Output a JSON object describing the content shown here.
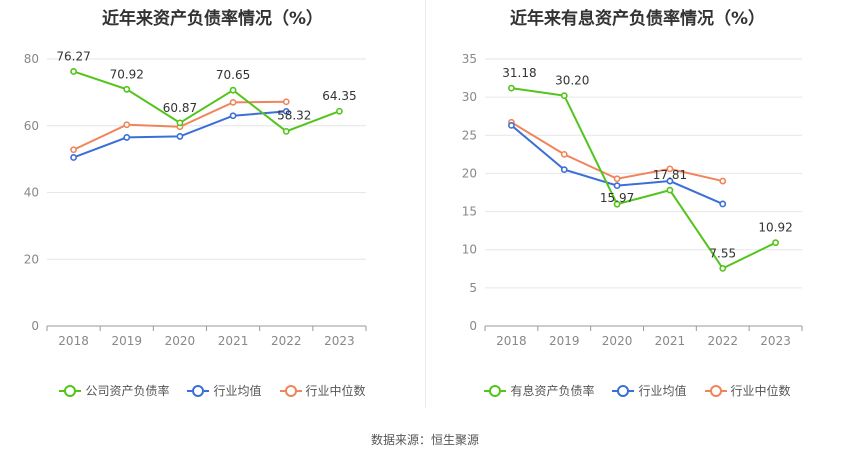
{
  "source_label": "数据来源：恒生聚源",
  "chart_data": [
    {
      "type": "line",
      "title": "近年来资产负债率情况（%）",
      "categories": [
        "2018",
        "2019",
        "2020",
        "2021",
        "2022",
        "2023"
      ],
      "ylim": [
        0,
        80
      ],
      "yticks": [
        0,
        20,
        40,
        60,
        80
      ],
      "grid": true,
      "legend_position": "bottom",
      "series": [
        {
          "name": "公司资产负债率",
          "color": "#52c41a",
          "values": [
            76.27,
            70.92,
            60.87,
            70.65,
            58.32,
            64.35
          ],
          "labels": [
            "76.27",
            "70.92",
            "60.87",
            "70.65",
            "58.32",
            "64.35"
          ]
        },
        {
          "name": "行业均值",
          "color": "#3a6fd8",
          "values": [
            50.5,
            56.5,
            56.8,
            63.0,
            64.3,
            null
          ],
          "labels": []
        },
        {
          "name": "行业中位数",
          "color": "#f0845a",
          "values": [
            52.8,
            60.3,
            59.7,
            67.0,
            67.2,
            null
          ],
          "labels": []
        }
      ]
    },
    {
      "type": "line",
      "title": "近年来有息资产负债率情况（%）",
      "categories": [
        "2018",
        "2019",
        "2020",
        "2021",
        "2022",
        "2023"
      ],
      "ylim": [
        0,
        35
      ],
      "yticks": [
        0,
        5,
        10,
        15,
        20,
        25,
        30,
        35
      ],
      "grid": true,
      "legend_position": "bottom",
      "series": [
        {
          "name": "有息资产负债率",
          "color": "#52c41a",
          "values": [
            31.18,
            30.2,
            15.97,
            17.81,
            7.55,
            10.92
          ],
          "labels": [
            "31.18",
            "30.20",
            "15.97",
            "17.81",
            "7.55",
            "10.92"
          ]
        },
        {
          "name": "行业均值",
          "color": "#3a6fd8",
          "values": [
            26.3,
            20.5,
            18.4,
            19.0,
            16.0,
            null
          ],
          "labels": []
        },
        {
          "name": "行业中位数",
          "color": "#f0845a",
          "values": [
            26.7,
            22.5,
            19.3,
            20.6,
            19.0,
            null
          ],
          "labels": []
        }
      ]
    }
  ]
}
